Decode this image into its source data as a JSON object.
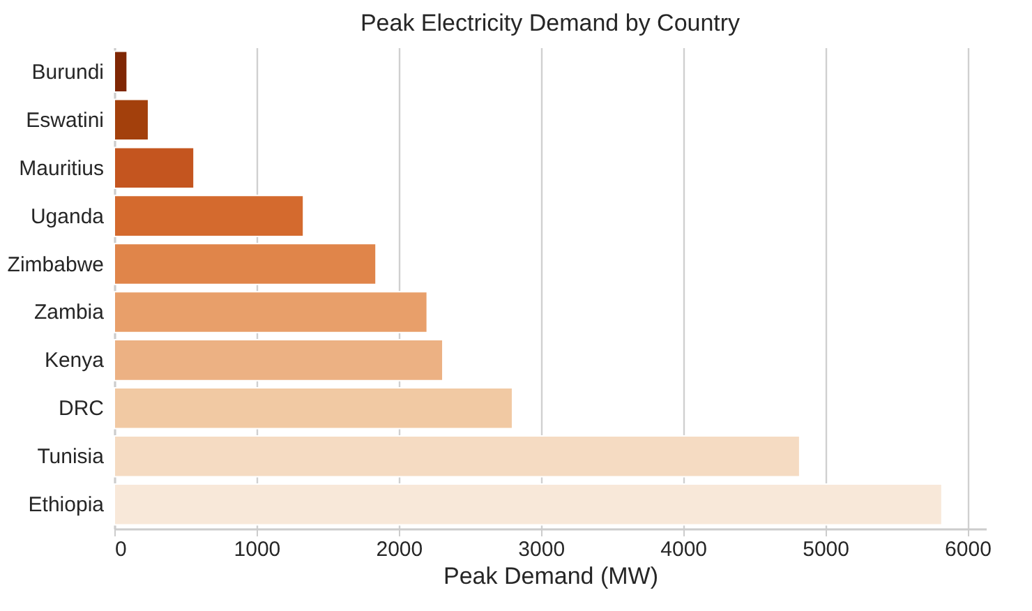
{
  "chart_data": {
    "type": "bar",
    "orientation": "horizontal",
    "title": "Peak Electricity Demand by Country",
    "xlabel": "Peak Demand (MW)",
    "categories": [
      "Burundi",
      "Eswatini",
      "Mauritius",
      "Uganda",
      "Zimbabwe",
      "Zambia",
      "Kenya",
      "DRC",
      "Tunisia",
      "Ethiopia"
    ],
    "values": [
      90,
      240,
      560,
      1330,
      1840,
      2200,
      2310,
      2800,
      4820,
      5820
    ],
    "colors": [
      "#7f2704",
      "#a3400c",
      "#c4551f",
      "#d46a2e",
      "#e0854a",
      "#e89f6a",
      "#ecb183",
      "#f1c9a3",
      "#f5dbc2",
      "#f8e8d9"
    ],
    "xlim": [
      0,
      6130
    ],
    "xticks": [
      0,
      1000,
      2000,
      3000,
      4000,
      5000,
      6000
    ],
    "grid": "x"
  }
}
